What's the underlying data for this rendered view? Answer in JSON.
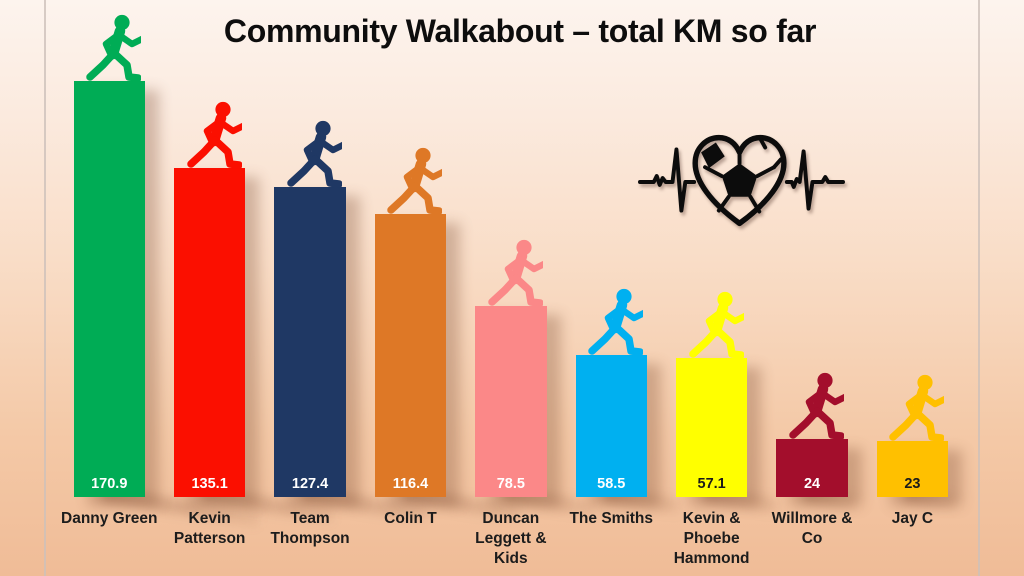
{
  "slide": {
    "title": "Community Walkabout – total KM so far"
  },
  "chart_data": {
    "type": "bar",
    "title": "Community Walkabout – total KM so far",
    "unit": "km",
    "categories": [
      "Danny Green",
      "Kevin Patterson",
      "Team Thompson",
      "Colin T",
      "Duncan Leggett & Kids",
      "The Smiths",
      "Kevin & Phoebe Hammond",
      "Willmore & Co",
      "Jay C"
    ],
    "values": [
      170.9,
      135.1,
      127.4,
      116.4,
      78.5,
      58.5,
      57.1,
      24,
      23
    ],
    "bar_colors": [
      "#00ac55",
      "#fb0f00",
      "#1f3864",
      "#de7826",
      "#fb8888",
      "#00b0f0",
      "#ffff00",
      "#a30e2c",
      "#ffc000"
    ],
    "value_label_colors": [
      "#ffffff",
      "#ffffff",
      "#ffffff",
      "#ffffff",
      "#ffffff",
      "#ffffff",
      "#1a1a1a",
      "#ffffff",
      "#1a1a1a"
    ],
    "value_labels_position": "inside-base",
    "bar_icon": "walking-person",
    "ylim": [
      0,
      180
    ],
    "grid": false,
    "legend": false
  },
  "decor": {
    "heart_icon": "heart-soccer-heartbeat-icon",
    "background_top_color": "#fdf4ee",
    "background_bottom_color": "#f0bc97",
    "shadow_color": "rgba(120,68,42,0.30)",
    "title_color": "#0d0d0d"
  }
}
